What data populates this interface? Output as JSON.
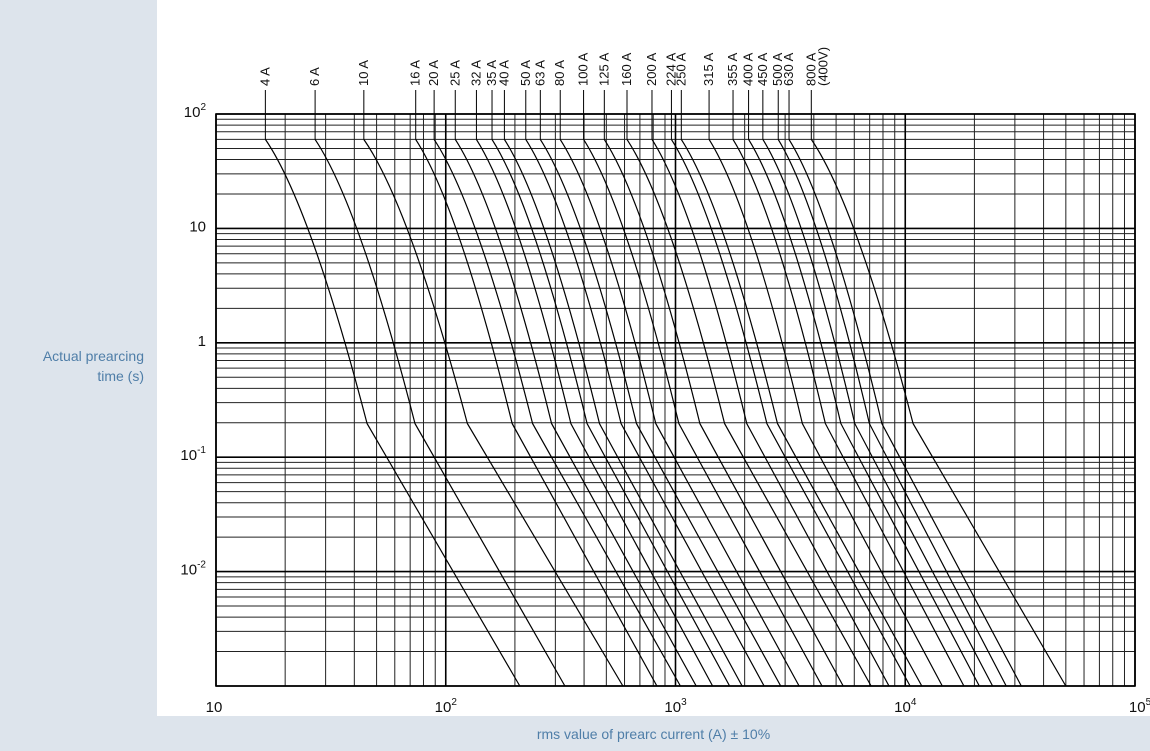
{
  "chart_data": {
    "type": "line",
    "ylabel": "Actual prearcing\ntime (s)",
    "xlabel": "rms value of prearc current (A) ± 10%",
    "x_scale": "log",
    "y_scale": "log",
    "xlim": [
      10,
      100000
    ],
    "ylim": [
      0.001,
      100
    ],
    "grid": true,
    "x_ticks": [
      {
        "base": "10",
        "exp": ""
      },
      {
        "base": "10",
        "exp": "2"
      },
      {
        "base": "10",
        "exp": "3"
      },
      {
        "base": "10",
        "exp": "4"
      },
      {
        "base": "10",
        "exp": "5"
      }
    ],
    "y_ticks": [
      {
        "base": "10",
        "exp": "2"
      },
      {
        "base": "10",
        "exp": ""
      },
      {
        "base": "1",
        "exp": ""
      },
      {
        "base": "10",
        "exp": "-1"
      },
      {
        "base": "10",
        "exp": "-2"
      }
    ],
    "series": [
      {
        "name": "4 A",
        "points": [
          [
            16.4,
            60
          ],
          [
            210,
            0.001
          ]
        ]
      },
      {
        "name": "6 A",
        "points": [
          [
            27,
            60
          ],
          [
            330,
            0.001
          ]
        ]
      },
      {
        "name": "10 A",
        "points": [
          [
            44,
            60
          ],
          [
            590,
            0.001
          ]
        ]
      },
      {
        "name": "16 A",
        "points": [
          [
            74,
            60
          ],
          [
            830,
            0.001
          ]
        ]
      },
      {
        "name": "20 A",
        "points": [
          [
            89,
            60
          ],
          [
            1050,
            0.001
          ]
        ]
      },
      {
        "name": "25 A",
        "points": [
          [
            110,
            60
          ],
          [
            1230,
            0.001
          ]
        ]
      },
      {
        "name": "32 A",
        "points": [
          [
            136,
            60
          ],
          [
            1450,
            0.001
          ]
        ]
      },
      {
        "name": "35 A",
        "points": [
          [
            159,
            60
          ],
          [
            1720,
            0.001
          ]
        ]
      },
      {
        "name": "40 A",
        "points": [
          [
            180,
            60
          ],
          [
            1950,
            0.001
          ]
        ]
      },
      {
        "name": "50 A",
        "points": [
          [
            223,
            60
          ],
          [
            2430,
            0.001
          ]
        ]
      },
      {
        "name": "63 A",
        "points": [
          [
            258,
            60
          ],
          [
            2870,
            0.001
          ]
        ]
      },
      {
        "name": "80 A",
        "points": [
          [
            315,
            60
          ],
          [
            3450,
            0.001
          ]
        ]
      },
      {
        "name": "100 A",
        "points": [
          [
            398,
            60
          ],
          [
            4340,
            0.001
          ]
        ]
      },
      {
        "name": "125 A",
        "points": [
          [
            490,
            60
          ],
          [
            5370,
            0.001
          ]
        ]
      },
      {
        "name": "160 A",
        "points": [
          [
            615,
            60
          ],
          [
            7100,
            0.001
          ]
        ]
      },
      {
        "name": "200 A",
        "points": [
          [
            790,
            60
          ],
          [
            8500,
            0.001
          ]
        ]
      },
      {
        "name": "224 A",
        "points": [
          [
            960,
            60
          ],
          [
            10500,
            0.001
          ]
        ]
      },
      {
        "name": "250 A",
        "points": [
          [
            1060,
            60
          ],
          [
            11800,
            0.001
          ]
        ]
      },
      {
        "name": "315 A",
        "points": [
          [
            1400,
            60
          ],
          [
            14500,
            0.001
          ]
        ]
      },
      {
        "name": "355 A",
        "points": [
          [
            1780,
            60
          ],
          [
            18000,
            0.001
          ]
        ]
      },
      {
        "name": "400 A",
        "points": [
          [
            2080,
            60
          ],
          [
            21000,
            0.001
          ]
        ]
      },
      {
        "name": "450 A",
        "points": [
          [
            2400,
            60
          ],
          [
            24000,
            0.001
          ]
        ]
      },
      {
        "name": "500 A",
        "points": [
          [
            2800,
            60
          ],
          [
            27500,
            0.001
          ]
        ]
      },
      {
        "name": "630 A",
        "points": [
          [
            3120,
            60
          ],
          [
            32000,
            0.001
          ]
        ]
      },
      {
        "name": "800 A\n(400V)",
        "points": [
          [
            3900,
            60
          ],
          [
            50000,
            0.001
          ]
        ]
      }
    ]
  }
}
